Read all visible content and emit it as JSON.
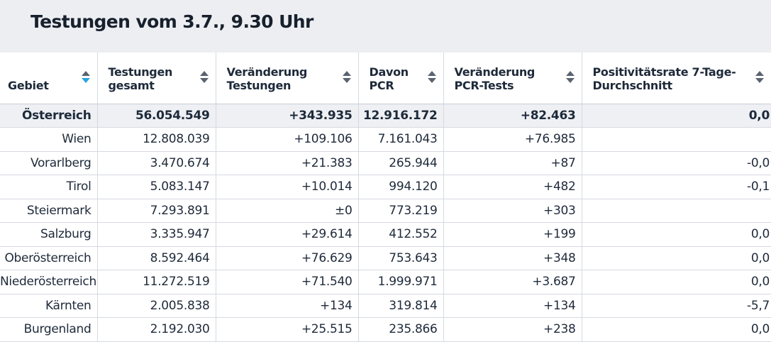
{
  "title": "Testungen vom 3.7., 9.30 Uhr",
  "columns": [
    {
      "label": "Gebiet",
      "sorted": true
    },
    {
      "label": "Testungen gesamt",
      "sorted": false
    },
    {
      "label": "Veränderung Testungen",
      "sorted": false
    },
    {
      "label": "Davon PCR",
      "sorted": false
    },
    {
      "label": "Veränderung PCR-Tests",
      "sorted": false
    },
    {
      "label": "Positivitätsrate 7-Tage-Durchschnitt",
      "sorted": false
    }
  ],
  "rows": [
    {
      "gebiet": "Österreich",
      "gesamt": "56.054.549",
      "veraenderung": "+343.935",
      "pcr": "12.916.172",
      "veraenderung_pcr": "+82.463",
      "positivitaet": "0,0"
    },
    {
      "gebiet": "Wien",
      "gesamt": "12.808.039",
      "veraenderung": "+109.106",
      "pcr": "7.161.043",
      "veraenderung_pcr": "+76.985",
      "positivitaet": ""
    },
    {
      "gebiet": "Vorarlberg",
      "gesamt": "3.470.674",
      "veraenderung": "+21.383",
      "pcr": "265.944",
      "veraenderung_pcr": "+87",
      "positivitaet": "-0,0"
    },
    {
      "gebiet": "Tirol",
      "gesamt": "5.083.147",
      "veraenderung": "+10.014",
      "pcr": "994.120",
      "veraenderung_pcr": "+482",
      "positivitaet": "-0,1"
    },
    {
      "gebiet": "Steiermark",
      "gesamt": "7.293.891",
      "veraenderung": "±0",
      "pcr": "773.219",
      "veraenderung_pcr": "+303",
      "positivitaet": ""
    },
    {
      "gebiet": "Salzburg",
      "gesamt": "3.335.947",
      "veraenderung": "+29.614",
      "pcr": "412.552",
      "veraenderung_pcr": "+199",
      "positivitaet": "0,0"
    },
    {
      "gebiet": "Oberösterreich",
      "gesamt": "8.592.464",
      "veraenderung": "+76.629",
      "pcr": "753.643",
      "veraenderung_pcr": "+348",
      "positivitaet": "0,0"
    },
    {
      "gebiet": "Niederösterreich",
      "gesamt": "11.272.519",
      "veraenderung": "+71.540",
      "pcr": "1.999.971",
      "veraenderung_pcr": "+3.687",
      "positivitaet": "0,0"
    },
    {
      "gebiet": "Kärnten",
      "gesamt": "2.005.838",
      "veraenderung": "+134",
      "pcr": "319.814",
      "veraenderung_pcr": "+134",
      "positivitaet": "-5,7"
    },
    {
      "gebiet": "Burgenland",
      "gesamt": "2.192.030",
      "veraenderung": "+25.515",
      "pcr": "235.866",
      "veraenderung_pcr": "+238",
      "positivitaet": "0,0"
    }
  ],
  "colors": {
    "header_bg": "#eceef2",
    "sort_active": "#2aa4de",
    "sort_inactive": "#5a6370",
    "text": "#1e2a3a"
  },
  "icons": {
    "sort": "sort-arrows-icon"
  }
}
